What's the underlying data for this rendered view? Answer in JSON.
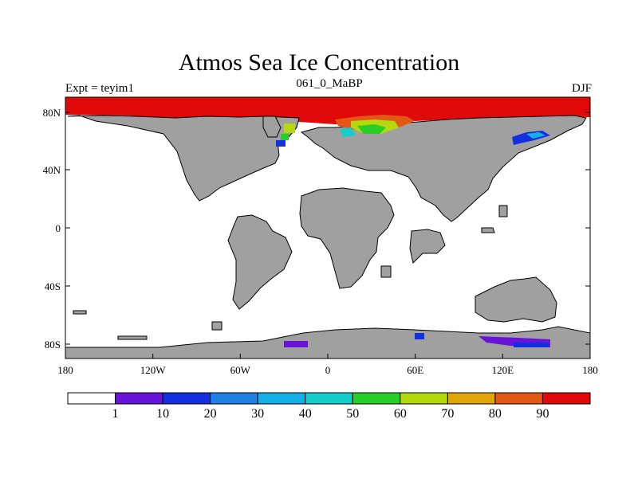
{
  "header": {
    "title": "Atmos Sea Ice Concentration",
    "left_label": "Expt = teyim1",
    "center_label": "061_0_MaBP",
    "right_label": "DJF"
  },
  "map": {
    "y_ticks": [
      "80N",
      "40N",
      "0",
      "40S",
      "80S"
    ],
    "x_ticks": [
      "180",
      "120W",
      "60W",
      "0",
      "60E",
      "120E",
      "180"
    ],
    "land_color": "#a0a0a0",
    "ocean_color": "#ffffff"
  },
  "colorbar": {
    "levels": [
      "1",
      "10",
      "20",
      "30",
      "40",
      "50",
      "60",
      "70",
      "80",
      "90"
    ],
    "colors": [
      "#ffffff",
      "#6a13d8",
      "#1230e0",
      "#1f80e6",
      "#15aee6",
      "#14ccc8",
      "#29cf29",
      "#b5d90f",
      "#e0a60b",
      "#e35814",
      "#e00a0a"
    ]
  }
}
